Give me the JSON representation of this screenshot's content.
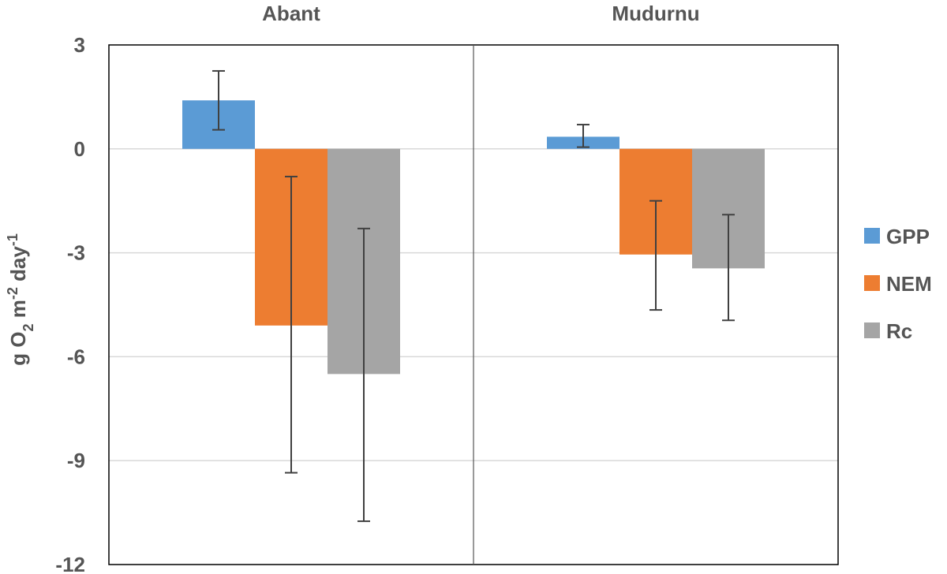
{
  "chart_data": {
    "type": "bar",
    "panels": [
      "Abant",
      "Mudurnu"
    ],
    "categories": [
      "Abant",
      "Mudurnu"
    ],
    "series": [
      {
        "name": "GPP",
        "color": "#5B9BD5",
        "values": [
          1.4,
          0.35
        ],
        "err_low": [
          0.55,
          0.05
        ],
        "err_high": [
          2.25,
          0.7
        ]
      },
      {
        "name": "NEM",
        "color": "#ED7D31",
        "values": [
          -5.1,
          -3.05
        ],
        "err_low": [
          -9.35,
          -4.65
        ],
        "err_high": [
          -0.8,
          -1.5
        ]
      },
      {
        "name": "Rc",
        "color": "#A5A5A5",
        "values": [
          -6.5,
          -3.45
        ],
        "err_low": [
          -10.75,
          -4.95
        ],
        "err_high": [
          -2.3,
          -1.9
        ]
      }
    ],
    "ylabel": "g O2 m-2 day-1",
    "ylim": [
      -12,
      3
    ],
    "yticks": [
      "3",
      "0",
      "-3",
      "-6",
      "-9",
      "-12"
    ],
    "grid": true,
    "legend_position": "right"
  }
}
